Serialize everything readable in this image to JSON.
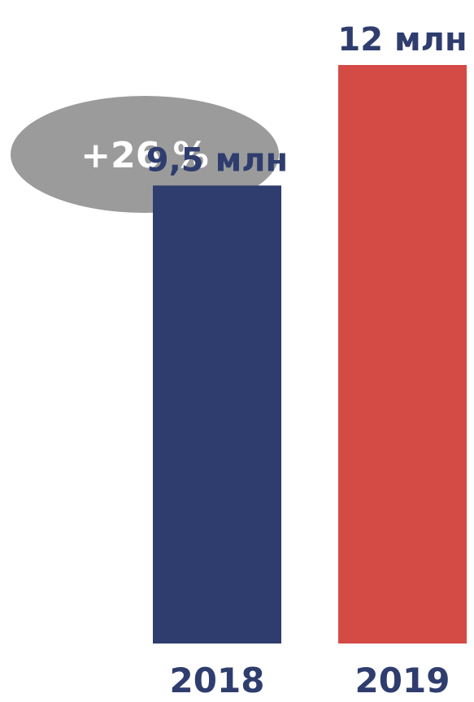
{
  "chart_data": {
    "type": "bar",
    "categories": [
      "2018",
      "2019"
    ],
    "values": [
      9.5,
      12
    ],
    "data_labels": [
      "9,5 млн",
      "12 млн"
    ],
    "unit": "млн",
    "ylim": [
      0,
      12
    ],
    "grid": false,
    "legend": "none",
    "annotation": "+26 %",
    "colors": {
      "bars": [
        "#2f3d6e",
        "#d44a44"
      ],
      "labels": "#2f3d6e",
      "badge_fill": "#9b9b9b",
      "badge_text": "#ffffff"
    }
  }
}
